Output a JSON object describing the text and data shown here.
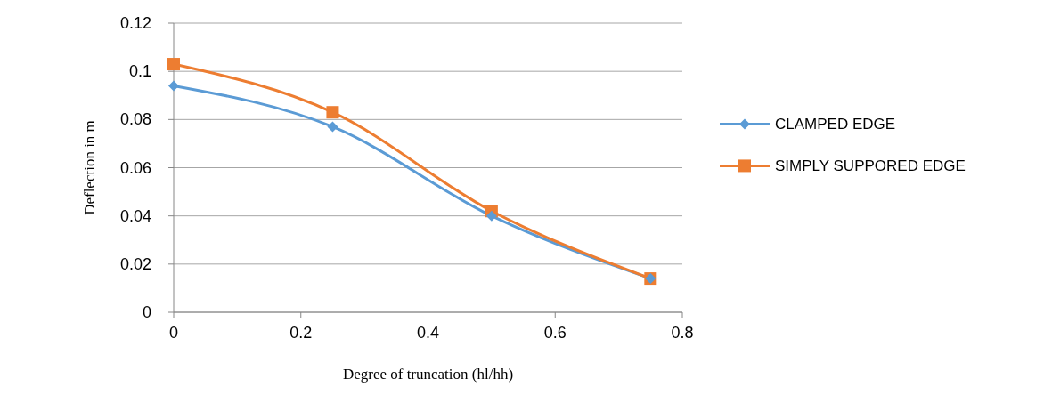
{
  "chart_data": {
    "type": "line",
    "xlabel": "Degree of truncation (hl/hh)",
    "ylabel": "Deflection in m",
    "x": [
      0,
      0.25,
      0.5,
      0.75
    ],
    "series": [
      {
        "name": "CLAMPED EDGE",
        "color": "#5b9bd5",
        "marker": "diamond",
        "values": [
          0.094,
          0.077,
          0.04,
          0.014
        ]
      },
      {
        "name": "SIMPLY SUPPORED EDGE",
        "color": "#ed7d31",
        "marker": "square",
        "values": [
          0.103,
          0.083,
          0.042,
          0.014
        ]
      }
    ],
    "xlim": [
      0,
      0.8
    ],
    "xticks": [
      0,
      0.2,
      0.4,
      0.6,
      0.8
    ],
    "ylim": [
      0,
      0.12
    ],
    "yticks": [
      0,
      0.02,
      0.04,
      0.06,
      0.08,
      0.1,
      0.12
    ],
    "grid": "y",
    "legend": "right"
  }
}
